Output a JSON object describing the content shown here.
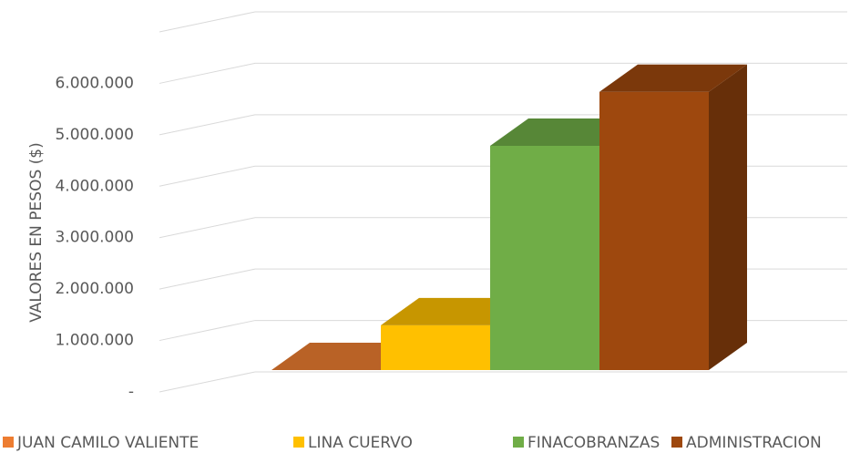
{
  "chart_data": {
    "type": "bar3d",
    "y_label": "VALORES EN PESOS ($)",
    "categories": [
      null
    ],
    "series": [
      {
        "name": "JUAN CAMILO VALIENTE",
        "color": "#ed7d31",
        "values": [
          0
        ]
      },
      {
        "name": "LINA CUERVO",
        "color": "#ffc000",
        "values": [
          870000
        ]
      },
      {
        "name": "FINACOBRANZAS",
        "color": "#70ad47",
        "values": [
          4360000
        ]
      },
      {
        "name": "ADMINISTRACION",
        "color": "#9e480e",
        "values": [
          5410000
        ]
      }
    ],
    "ylim": [
      0,
      7000000
    ],
    "yticks": [
      {
        "value": 0,
        "label": "-"
      },
      {
        "value": 1000000,
        "label": "1.000.000"
      },
      {
        "value": 2000000,
        "label": "2.000.000"
      },
      {
        "value": 3000000,
        "label": "3.000.000"
      },
      {
        "value": 4000000,
        "label": "4.000.000"
      },
      {
        "value": 5000000,
        "label": "5.000.000"
      },
      {
        "value": 6000000,
        "label": "6.000.000"
      },
      7000000
    ],
    "grid": true,
    "legend": "bottom"
  }
}
